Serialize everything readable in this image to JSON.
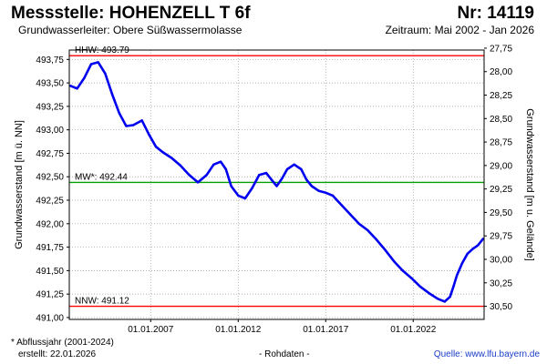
{
  "header": {
    "title": "Messstelle: HOHENZELL T 6f",
    "number": "Nr: 14119",
    "aquifer": "Grundwasserleiter:   Obere Süßwassermolasse",
    "period": "Zeitraum: Mai 2002 - Jan 2026"
  },
  "footer": {
    "footnote": "* Abflussjahr (2001-2024)",
    "created": "erstellt:  22.01.2026",
    "rawdata": "- Rohdaten -",
    "source": "Quelle: www.lfu.bayern.de"
  },
  "colors": {
    "series": "#0000ee",
    "extreme_line": "#ff0000",
    "mean_line": "#00a000",
    "grid": "#9a9a9a"
  },
  "chart_data": {
    "type": "line",
    "title": "",
    "ylabel": "Grundwasserstand [m ü. NN]",
    "y2label": "Grundwasserstand [m u. Gelände]",
    "ylim": [
      490.98,
      493.85
    ],
    "y2lim": [
      30.64,
      27.77
    ],
    "xlim": [
      2002.35,
      2026.05
    ],
    "yticks": [
      491.0,
      491.25,
      491.5,
      491.75,
      492.0,
      492.25,
      492.5,
      492.75,
      493.0,
      493.25,
      493.5,
      493.75
    ],
    "yticklabels": [
      "491,00",
      "491,25",
      "491,50",
      "491,75",
      "492,00",
      "492,25",
      "492,50",
      "492,75",
      "493,00",
      "493,25",
      "493,50",
      "493,75"
    ],
    "y2ticks": [
      27.75,
      28.0,
      28.25,
      28.5,
      28.75,
      29.0,
      29.25,
      29.5,
      29.75,
      30.0,
      30.25,
      30.5
    ],
    "y2ticklabels": [
      "27,75",
      "28,00",
      "28,25",
      "28,50",
      "28,75",
      "29,00",
      "29,25",
      "29,50",
      "29,75",
      "30,00",
      "30,25",
      "30,50"
    ],
    "xticks": [
      2007.0,
      2012.0,
      2017.0,
      2022.0
    ],
    "xticklabels": [
      "01.01.2007",
      "01.01.2012",
      "01.01.2017",
      "01.01.2022"
    ],
    "grid": true,
    "reference_lines": [
      {
        "label": "HHW: 493.79",
        "value": 493.79,
        "color": "#ff0000"
      },
      {
        "label": "MW*: 492.44",
        "value": 492.44,
        "color": "#00a000"
      },
      {
        "label": "NNW: 491.12",
        "value": 491.12,
        "color": "#ff0000"
      }
    ],
    "series": [
      {
        "x": [
          2002.4,
          2002.8,
          2003.2,
          2003.6,
          2004.0,
          2004.4,
          2004.8,
          2005.2,
          2005.6,
          2006.0,
          2006.5,
          2006.9,
          2007.3,
          2007.7,
          2008.2,
          2008.7,
          2009.2,
          2009.7,
          2010.2,
          2010.6,
          2011.0,
          2011.3,
          2011.6,
          2012.0,
          2012.4,
          2012.8,
          2013.2,
          2013.6,
          2013.9,
          2014.2,
          2014.5,
          2014.8,
          2015.2,
          2015.6,
          2015.9,
          2016.2,
          2016.6,
          2017.0,
          2017.4,
          2017.9,
          2018.4,
          2018.9,
          2019.4,
          2019.9,
          2020.4,
          2020.9,
          2021.4,
          2021.9,
          2022.4,
          2022.9,
          2023.4,
          2023.8,
          2024.1,
          2024.3,
          2024.5,
          2024.8,
          2025.1,
          2025.4,
          2025.7,
          2026.0
        ],
        "y": [
          493.47,
          493.44,
          493.55,
          493.7,
          493.72,
          493.6,
          493.38,
          493.18,
          493.04,
          493.05,
          493.1,
          492.95,
          492.82,
          492.76,
          492.7,
          492.62,
          492.52,
          492.44,
          492.52,
          492.63,
          492.66,
          492.58,
          492.4,
          492.3,
          492.27,
          492.38,
          492.52,
          492.54,
          492.47,
          492.4,
          492.48,
          492.58,
          492.63,
          492.58,
          492.47,
          492.4,
          492.35,
          492.33,
          492.3,
          492.2,
          492.1,
          492.0,
          491.93,
          491.83,
          491.72,
          491.6,
          491.5,
          491.42,
          491.33,
          491.26,
          491.2,
          491.17,
          491.22,
          491.33,
          491.45,
          491.58,
          491.68,
          491.73,
          491.77,
          491.84
        ]
      }
    ]
  }
}
